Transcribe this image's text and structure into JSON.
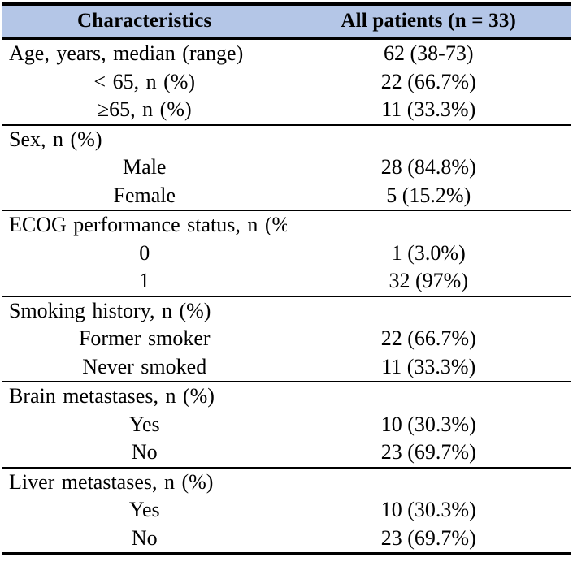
{
  "table": {
    "header": {
      "characteristics_label": "Characteristics",
      "all_patients_label": "All patients (n = 33)",
      "background_color": "#b4c6e7",
      "rule_color": "#000000"
    },
    "sections": [
      {
        "rows": [
          {
            "label": "Age, years, median (range)",
            "value": "62 (38-73)",
            "indent": false
          },
          {
            "label": "< 65, n (%)",
            "value": "22 (66.7%)",
            "indent": true
          },
          {
            "label": "≥65, n (%)",
            "value": "11 (33.3%)",
            "indent": true
          }
        ]
      },
      {
        "rows": [
          {
            "label": "Sex, n (%)",
            "value": "",
            "indent": false
          },
          {
            "label": "Male",
            "value": "28 (84.8%)",
            "indent": true
          },
          {
            "label": "Female",
            "value": "5 (15.2%)",
            "indent": true
          }
        ]
      },
      {
        "rows": [
          {
            "label": "ECOG performance status, n (%)",
            "value": "",
            "indent": false
          },
          {
            "label": "0",
            "value": "1 (3.0%)",
            "indent": true
          },
          {
            "label": "1",
            "value": "32 (97%)",
            "indent": true
          }
        ]
      },
      {
        "rows": [
          {
            "label": "Smoking history, n (%)",
            "value": "",
            "indent": false
          },
          {
            "label": "Former smoker",
            "value": "22 (66.7%)",
            "indent": true
          },
          {
            "label": "Never smoked",
            "value": "11 (33.3%)",
            "indent": true
          }
        ]
      },
      {
        "rows": [
          {
            "label": "Brain metastases, n (%)",
            "value": "",
            "indent": false
          },
          {
            "label": "Yes",
            "value": "10 (30.3%)",
            "indent": true
          },
          {
            "label": "No",
            "value": "23 (69.7%)",
            "indent": true
          }
        ]
      },
      {
        "rows": [
          {
            "label": "Liver metastases, n (%)",
            "value": "",
            "indent": false
          },
          {
            "label": "Yes",
            "value": "10 (30.3%)",
            "indent": true
          },
          {
            "label": "No",
            "value": "23 (69.7%)",
            "indent": true
          }
        ]
      }
    ]
  }
}
